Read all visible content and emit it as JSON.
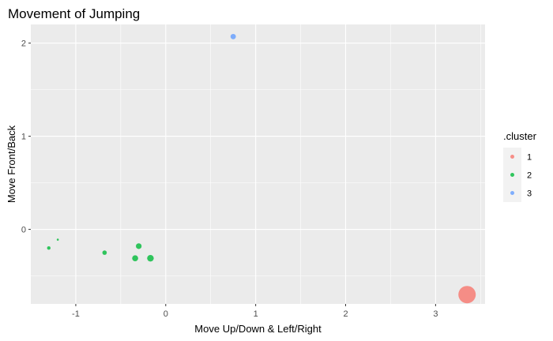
{
  "chart_data": {
    "type": "scatter",
    "title": "Movement of Jumping",
    "xlabel": "Move Up/Down & Left/Right",
    "ylabel": "Move Front/Back",
    "xlim": [
      -1.5,
      3.55
    ],
    "ylim": [
      -0.8,
      2.2
    ],
    "x_ticks": [
      -1,
      0,
      1,
      2,
      3
    ],
    "y_ticks": [
      0,
      1,
      2
    ],
    "grid": true,
    "legend": {
      "title": ".cluster",
      "position": "right",
      "entries": [
        {
          "label": "1",
          "color": "#F8766D"
        },
        {
          "label": "2",
          "color": "#00BA38"
        },
        {
          "label": "3",
          "color": "#619CFF"
        }
      ]
    },
    "points": [
      {
        "x": 3.35,
        "y": -0.7,
        "cluster": "1",
        "size": 11
      },
      {
        "x": -1.3,
        "y": -0.2,
        "cluster": "2",
        "size": 2.2
      },
      {
        "x": -1.2,
        "y": -0.11,
        "cluster": "2",
        "size": 1.3
      },
      {
        "x": -0.68,
        "y": -0.25,
        "cluster": "2",
        "size": 2.8
      },
      {
        "x": -0.3,
        "y": -0.18,
        "cluster": "2",
        "size": 3.6
      },
      {
        "x": -0.34,
        "y": -0.31,
        "cluster": "2",
        "size": 3.8
      },
      {
        "x": -0.17,
        "y": -0.31,
        "cluster": "2",
        "size": 4.2
      },
      {
        "x": 0.75,
        "y": 2.07,
        "cluster": "3",
        "size": 3.4
      }
    ]
  }
}
